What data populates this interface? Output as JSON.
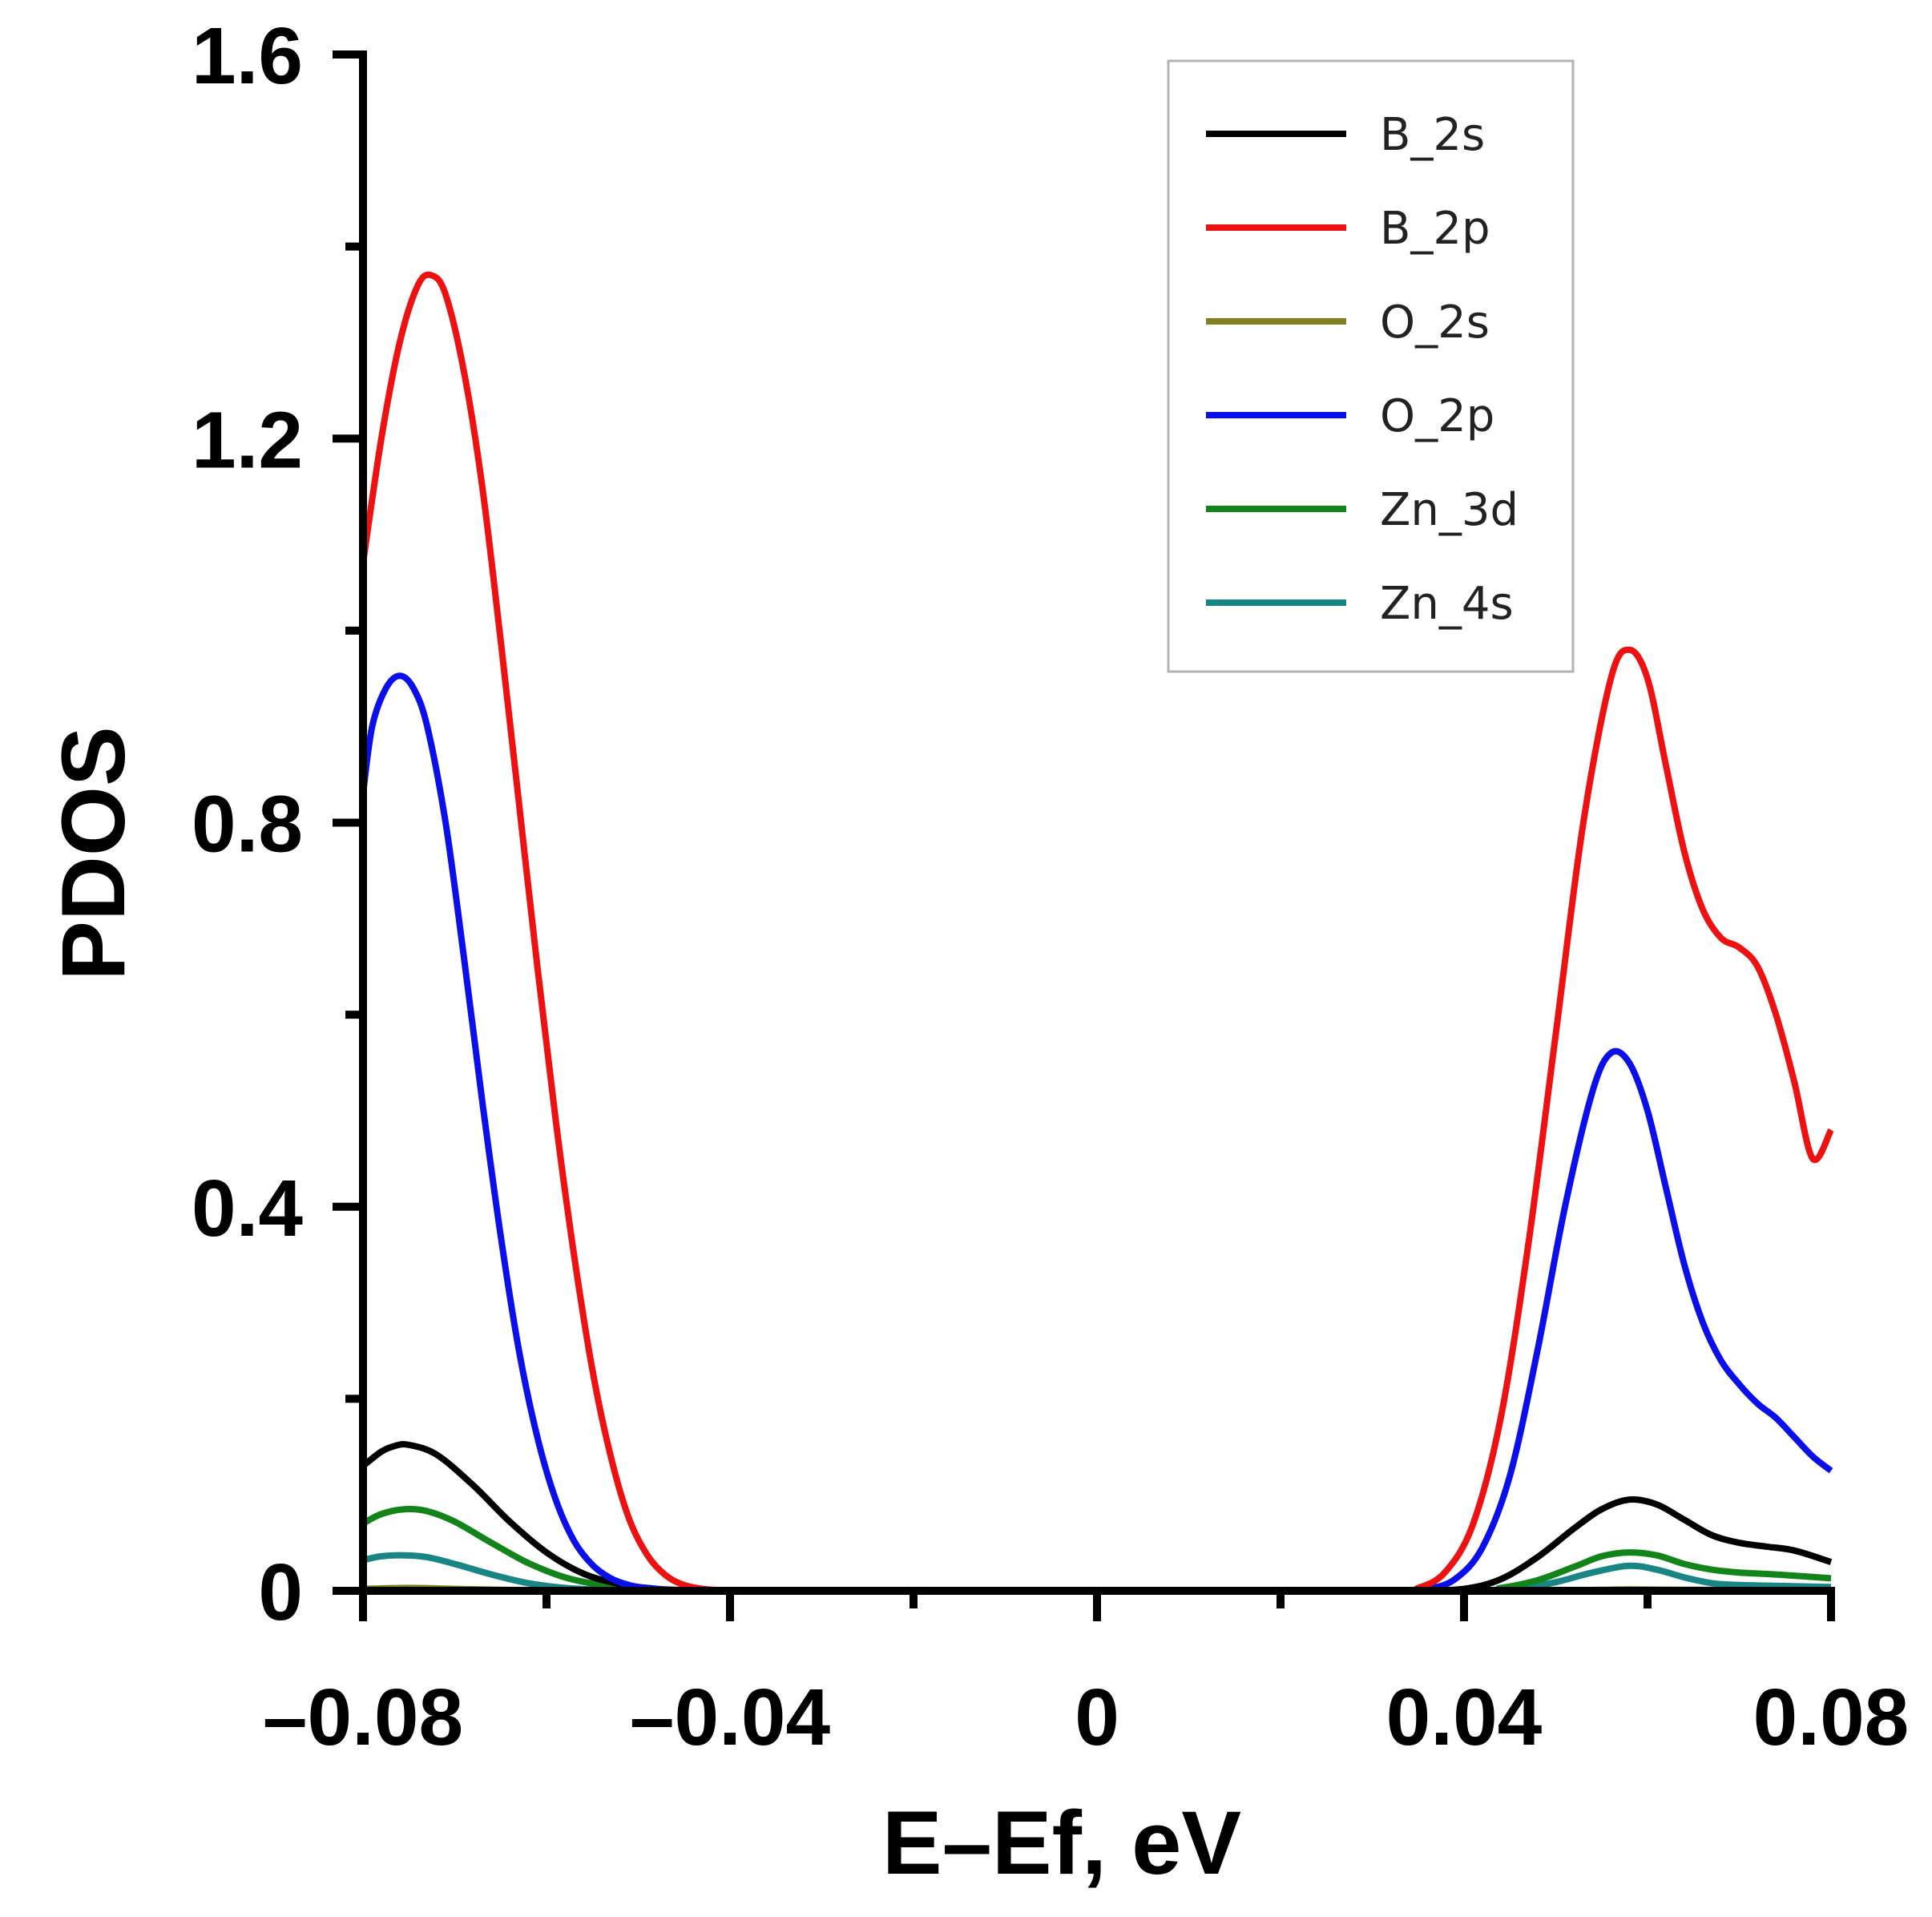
{
  "chart_data": {
    "type": "line",
    "title": "",
    "xlabel": "E–Ef, eV",
    "ylabel": "PDOS",
    "xlim": [
      -0.08,
      0.08
    ],
    "ylim": [
      0,
      1.6
    ],
    "x_ticks": [
      -0.08,
      -0.04,
      0,
      0.04,
      0.08
    ],
    "x_tick_labels": [
      "–0.08",
      "–0.04",
      "0",
      "0.04",
      "0.08"
    ],
    "y_ticks": [
      0,
      0.4,
      0.8,
      1.2,
      1.6
    ],
    "y_tick_labels": [
      "0",
      "0.4",
      "0.8",
      "1.2",
      "1.6"
    ],
    "grid": false,
    "legend_position": "top-right",
    "series": [
      {
        "name": "B_2s",
        "color": "#000000",
        "x": [
          -0.08,
          -0.078,
          -0.0765,
          -0.075,
          -0.072,
          -0.068,
          -0.064,
          -0.06,
          -0.056,
          -0.052,
          -0.048,
          -0.044,
          -0.04,
          0.0,
          0.03,
          0.035,
          0.04,
          0.044,
          0.048,
          0.052,
          0.055,
          0.058,
          0.061,
          0.064,
          0.067,
          0.07,
          0.073,
          0.076,
          0.08
        ],
        "values": [
          0.13,
          0.145,
          0.151,
          0.152,
          0.142,
          0.11,
          0.072,
          0.04,
          0.018,
          0.007,
          0.002,
          0.0005,
          0,
          0,
          0,
          0.0002,
          0.002,
          0.012,
          0.035,
          0.065,
          0.085,
          0.095,
          0.09,
          0.074,
          0.058,
          0.05,
          0.046,
          0.042,
          0.03
        ]
      },
      {
        "name": "B_2p",
        "color": "#ee1111",
        "x": [
          -0.08,
          -0.078,
          -0.076,
          -0.074,
          -0.0725,
          -0.071,
          -0.069,
          -0.067,
          -0.065,
          -0.063,
          -0.061,
          -0.059,
          -0.057,
          -0.055,
          -0.053,
          -0.051,
          -0.049,
          -0.047,
          -0.045,
          -0.043,
          -0.041,
          -0.04,
          0.0,
          0.032,
          0.035,
          0.038,
          0.041,
          0.044,
          0.047,
          0.05,
          0.053,
          0.056,
          0.058,
          0.06,
          0.062,
          0.064,
          0.066,
          0.068,
          0.07,
          0.072,
          0.074,
          0.076,
          0.078,
          0.08
        ],
        "values": [
          1.07,
          1.2,
          1.3,
          1.36,
          1.37,
          1.35,
          1.27,
          1.15,
          0.99,
          0.82,
          0.65,
          0.49,
          0.35,
          0.23,
          0.14,
          0.075,
          0.037,
          0.016,
          0.006,
          0.002,
          0.0005,
          0,
          0,
          0,
          0.003,
          0.02,
          0.07,
          0.18,
          0.36,
          0.58,
          0.8,
          0.95,
          0.98,
          0.95,
          0.86,
          0.77,
          0.71,
          0.68,
          0.67,
          0.65,
          0.6,
          0.53,
          0.45,
          0.48
        ]
      },
      {
        "name": "O_2s",
        "color": "#808020",
        "x": [
          -0.08,
          -0.075,
          -0.07,
          -0.065,
          -0.06,
          -0.055,
          -0.05,
          0.0,
          0.045,
          0.05,
          0.055,
          0.058,
          0.062,
          0.066,
          0.07,
          0.075,
          0.08
        ],
        "values": [
          0.002,
          0.003,
          0.002,
          0.001,
          0.0005,
          0.0002,
          0,
          0,
          0,
          0.0003,
          0.001,
          0.0015,
          0.0012,
          0.001,
          0.0008,
          0.0006,
          0.0005
        ]
      },
      {
        "name": "O_2p",
        "color": "#0b10ea",
        "x": [
          -0.08,
          -0.079,
          -0.0775,
          -0.076,
          -0.0745,
          -0.073,
          -0.071,
          -0.069,
          -0.067,
          -0.065,
          -0.063,
          -0.061,
          -0.059,
          -0.057,
          -0.055,
          -0.053,
          -0.051,
          -0.049,
          -0.047,
          -0.045,
          -0.043,
          -0.041,
          0.0,
          0.033,
          0.036,
          0.039,
          0.042,
          0.045,
          0.048,
          0.051,
          0.054,
          0.056,
          0.058,
          0.06,
          0.062,
          0.064,
          0.066,
          0.068,
          0.07,
          0.072,
          0.074,
          0.076,
          0.078,
          0.08
        ],
        "values": [
          0.83,
          0.9,
          0.94,
          0.953,
          0.94,
          0.9,
          0.8,
          0.66,
          0.51,
          0.37,
          0.25,
          0.16,
          0.095,
          0.052,
          0.027,
          0.013,
          0.006,
          0.0025,
          0.001,
          0.0004,
          0.0001,
          0,
          0,
          0,
          0.002,
          0.012,
          0.045,
          0.12,
          0.25,
          0.4,
          0.52,
          0.56,
          0.55,
          0.5,
          0.42,
          0.34,
          0.28,
          0.24,
          0.215,
          0.195,
          0.18,
          0.16,
          0.14,
          0.125
        ]
      },
      {
        "name": "Zn_3d",
        "color": "#13841a",
        "x": [
          -0.08,
          -0.078,
          -0.0755,
          -0.073,
          -0.07,
          -0.066,
          -0.062,
          -0.058,
          -0.054,
          -0.05,
          -0.046,
          -0.042,
          0.0,
          0.04,
          0.044,
          0.048,
          0.052,
          0.055,
          0.058,
          0.061,
          0.064,
          0.067,
          0.07,
          0.074,
          0.08
        ],
        "values": [
          0.07,
          0.08,
          0.085,
          0.083,
          0.072,
          0.05,
          0.029,
          0.014,
          0.006,
          0.002,
          0.0006,
          0.0001,
          0,
          0,
          0.003,
          0.011,
          0.025,
          0.036,
          0.04,
          0.037,
          0.028,
          0.022,
          0.019,
          0.017,
          0.013
        ]
      },
      {
        "name": "Zn_4s",
        "color": "#1a8585",
        "x": [
          -0.08,
          -0.078,
          -0.0755,
          -0.073,
          -0.07,
          -0.066,
          -0.062,
          -0.058,
          -0.054,
          -0.05,
          -0.046,
          0.0,
          0.042,
          0.046,
          0.05,
          0.054,
          0.058,
          0.061,
          0.064,
          0.067,
          0.07,
          0.075,
          0.08
        ],
        "values": [
          0.032,
          0.036,
          0.037,
          0.035,
          0.028,
          0.017,
          0.008,
          0.003,
          0.001,
          0.0003,
          0,
          0,
          0,
          0.002,
          0.009,
          0.019,
          0.026,
          0.022,
          0.014,
          0.008,
          0.006,
          0.005,
          0.004
        ]
      }
    ]
  }
}
